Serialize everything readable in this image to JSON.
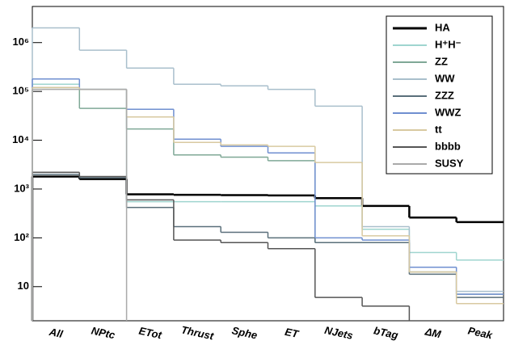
{
  "chart_data": {
    "type": "step",
    "log_scale": true,
    "categories": [
      "All",
      "NPtc",
      "ETot",
      "Thrust",
      "Sphe",
      "ET",
      "NJets",
      "bTag",
      "ΔM",
      "Peak"
    ],
    "ylim": [
      2,
      5500000
    ],
    "yticks": [
      {
        "value": 10,
        "label": "10"
      },
      {
        "value": 100,
        "label": "10²"
      },
      {
        "value": 1000,
        "label": "10³"
      },
      {
        "value": 10000,
        "label": "10⁴"
      },
      {
        "value": 100000,
        "label": "10⁵"
      },
      {
        "value": 1000000,
        "label": "10⁶"
      }
    ],
    "legend": "top-right",
    "series": [
      {
        "name": "HA",
        "color": "#000000",
        "values": [
          1800,
          1600,
          780,
          760,
          750,
          740,
          650,
          450,
          260,
          210
        ]
      },
      {
        "name": "H⁺H⁻",
        "color": "#9fd5cf",
        "values": [
          140000,
          110000,
          550,
          550,
          550,
          550,
          450,
          150,
          50,
          35
        ]
      },
      {
        "name": "ZZ",
        "color": "#7fa896",
        "values": [
          120000,
          45000,
          17000,
          5000,
          4500,
          3800,
          80,
          80,
          20,
          7
        ]
      },
      {
        "name": "WW",
        "color": "#a9bfcc",
        "values": [
          2000000,
          700000,
          300000,
          140000,
          130000,
          110000,
          50000,
          170,
          20,
          8
        ]
      },
      {
        "name": "ZZZ",
        "color": "#5a6f7a",
        "values": [
          2000,
          1700,
          420,
          170,
          130,
          100,
          80,
          80,
          18,
          6
        ]
      },
      {
        "name": "WWZ",
        "color": "#6f8fd0",
        "values": [
          180000,
          110000,
          43000,
          10500,
          7500,
          5500,
          100,
          90,
          25,
          7
        ]
      },
      {
        "name": "tt",
        "color": "#d8c9a0",
        "values": [
          120000,
          110000,
          30000,
          9000,
          8000,
          7500,
          3500,
          110,
          20,
          4.5
        ]
      },
      {
        "name": "bbbb",
        "color": "#555555",
        "values": [
          2200,
          1800,
          600,
          90,
          80,
          60,
          6,
          4,
          null,
          null
        ]
      },
      {
        "name": "SUSY",
        "color": "#aaaaaa",
        "values": [
          110000,
          110000,
          null,
          null,
          null,
          null,
          null,
          null,
          null,
          null
        ]
      }
    ]
  }
}
